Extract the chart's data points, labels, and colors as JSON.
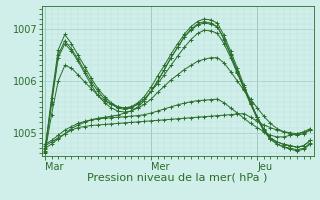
{
  "bg_color": "#d0eeea",
  "grid_color_major": "#a8d4cc",
  "grid_color_minor": "#bce0d8",
  "line_color": "#2a6e2a",
  "xlabel": "Pression niveau de la mer( hPa )",
  "xlabel_fontsize": 8,
  "tick_fontsize": 7,
  "day_labels": [
    "Mar",
    "Mer",
    "Jeu"
  ],
  "day_positions": [
    0,
    16,
    32
  ],
  "ylim": [
    1004.55,
    1007.45
  ],
  "yticks": [
    1005,
    1006,
    1007
  ],
  "xlim": [
    -0.5,
    40.5
  ],
  "n_points": 41,
  "series": [
    [
      1004.75,
      1004.82,
      1004.9,
      1004.98,
      1005.05,
      1005.1,
      1005.12,
      1005.14,
      1005.15,
      1005.16,
      1005.17,
      1005.18,
      1005.19,
      1005.2,
      1005.21,
      1005.22,
      1005.23,
      1005.24,
      1005.25,
      1005.26,
      1005.27,
      1005.28,
      1005.29,
      1005.3,
      1005.31,
      1005.32,
      1005.33,
      1005.34,
      1005.35,
      1005.36,
      1005.37,
      1005.3,
      1005.22,
      1005.15,
      1005.1,
      1005.05,
      1005.02,
      1005.0,
      1004.98,
      1005.0,
      1005.05
    ],
    [
      1004.78,
      1004.85,
      1004.95,
      1005.05,
      1005.12,
      1005.18,
      1005.22,
      1005.25,
      1005.27,
      1005.28,
      1005.29,
      1005.3,
      1005.31,
      1005.32,
      1005.33,
      1005.35,
      1005.38,
      1005.42,
      1005.46,
      1005.5,
      1005.54,
      1005.57,
      1005.6,
      1005.62,
      1005.63,
      1005.64,
      1005.65,
      1005.58,
      1005.48,
      1005.38,
      1005.28,
      1005.18,
      1005.1,
      1005.02,
      1004.95,
      1004.92,
      1004.92,
      1004.95,
      1004.98,
      1005.02,
      1005.08
    ],
    [
      1004.7,
      1004.78,
      1004.88,
      1004.98,
      1005.08,
      1005.15,
      1005.2,
      1005.25,
      1005.28,
      1005.3,
      1005.32,
      1005.34,
      1005.38,
      1005.42,
      1005.48,
      1005.55,
      1005.65,
      1005.78,
      1005.9,
      1006.02,
      1006.12,
      1006.22,
      1006.3,
      1006.38,
      1006.42,
      1006.45,
      1006.45,
      1006.35,
      1006.18,
      1006.0,
      1005.82,
      1005.65,
      1005.48,
      1005.32,
      1005.18,
      1005.08,
      1005.02,
      1004.98,
      1004.95,
      1004.98,
      1005.05
    ],
    [
      1004.68,
      1005.6,
      1006.5,
      1006.78,
      1006.62,
      1006.42,
      1006.2,
      1005.98,
      1005.8,
      1005.65,
      1005.55,
      1005.48,
      1005.45,
      1005.48,
      1005.55,
      1005.65,
      1005.8,
      1006.0,
      1006.22,
      1006.45,
      1006.65,
      1006.85,
      1006.98,
      1007.08,
      1007.12,
      1007.1,
      1007.05,
      1006.82,
      1006.52,
      1006.2,
      1005.88,
      1005.58,
      1005.3,
      1005.06,
      1004.9,
      1004.82,
      1004.78,
      1004.75,
      1004.72,
      1004.75,
      1004.85
    ],
    [
      1004.65,
      1005.68,
      1006.6,
      1006.9,
      1006.72,
      1006.5,
      1006.28,
      1006.05,
      1005.85,
      1005.7,
      1005.58,
      1005.5,
      1005.48,
      1005.5,
      1005.58,
      1005.7,
      1005.88,
      1006.1,
      1006.3,
      1006.52,
      1006.72,
      1006.9,
      1007.05,
      1007.15,
      1007.2,
      1007.18,
      1007.12,
      1006.88,
      1006.58,
      1006.25,
      1005.92,
      1005.6,
      1005.3,
      1005.05,
      1004.88,
      1004.78,
      1004.72,
      1004.68,
      1004.65,
      1004.68,
      1004.78
    ],
    [
      1004.62,
      1005.55,
      1006.45,
      1006.72,
      1006.58,
      1006.38,
      1006.15,
      1005.92,
      1005.72,
      1005.58,
      1005.48,
      1005.42,
      1005.4,
      1005.42,
      1005.5,
      1005.62,
      1005.8,
      1006.0,
      1006.22,
      1006.45,
      1006.65,
      1006.85,
      1007.0,
      1007.1,
      1007.15,
      1007.12,
      1007.05,
      1006.8,
      1006.5,
      1006.18,
      1005.85,
      1005.55,
      1005.27,
      1005.03,
      1004.87,
      1004.78,
      1004.73,
      1004.7,
      1004.67,
      1004.7,
      1004.8
    ],
    [
      1004.6,
      1005.35,
      1006.0,
      1006.3,
      1006.25,
      1006.12,
      1005.98,
      1005.85,
      1005.72,
      1005.62,
      1005.55,
      1005.5,
      1005.48,
      1005.5,
      1005.55,
      1005.65,
      1005.8,
      1005.95,
      1006.12,
      1006.3,
      1006.48,
      1006.65,
      1006.8,
      1006.92,
      1006.98,
      1006.97,
      1006.92,
      1006.72,
      1006.45,
      1006.15,
      1005.85,
      1005.56,
      1005.3,
      1005.07,
      1004.9,
      1004.82,
      1004.77,
      1004.75,
      1004.72,
      1004.75,
      1004.85
    ]
  ]
}
